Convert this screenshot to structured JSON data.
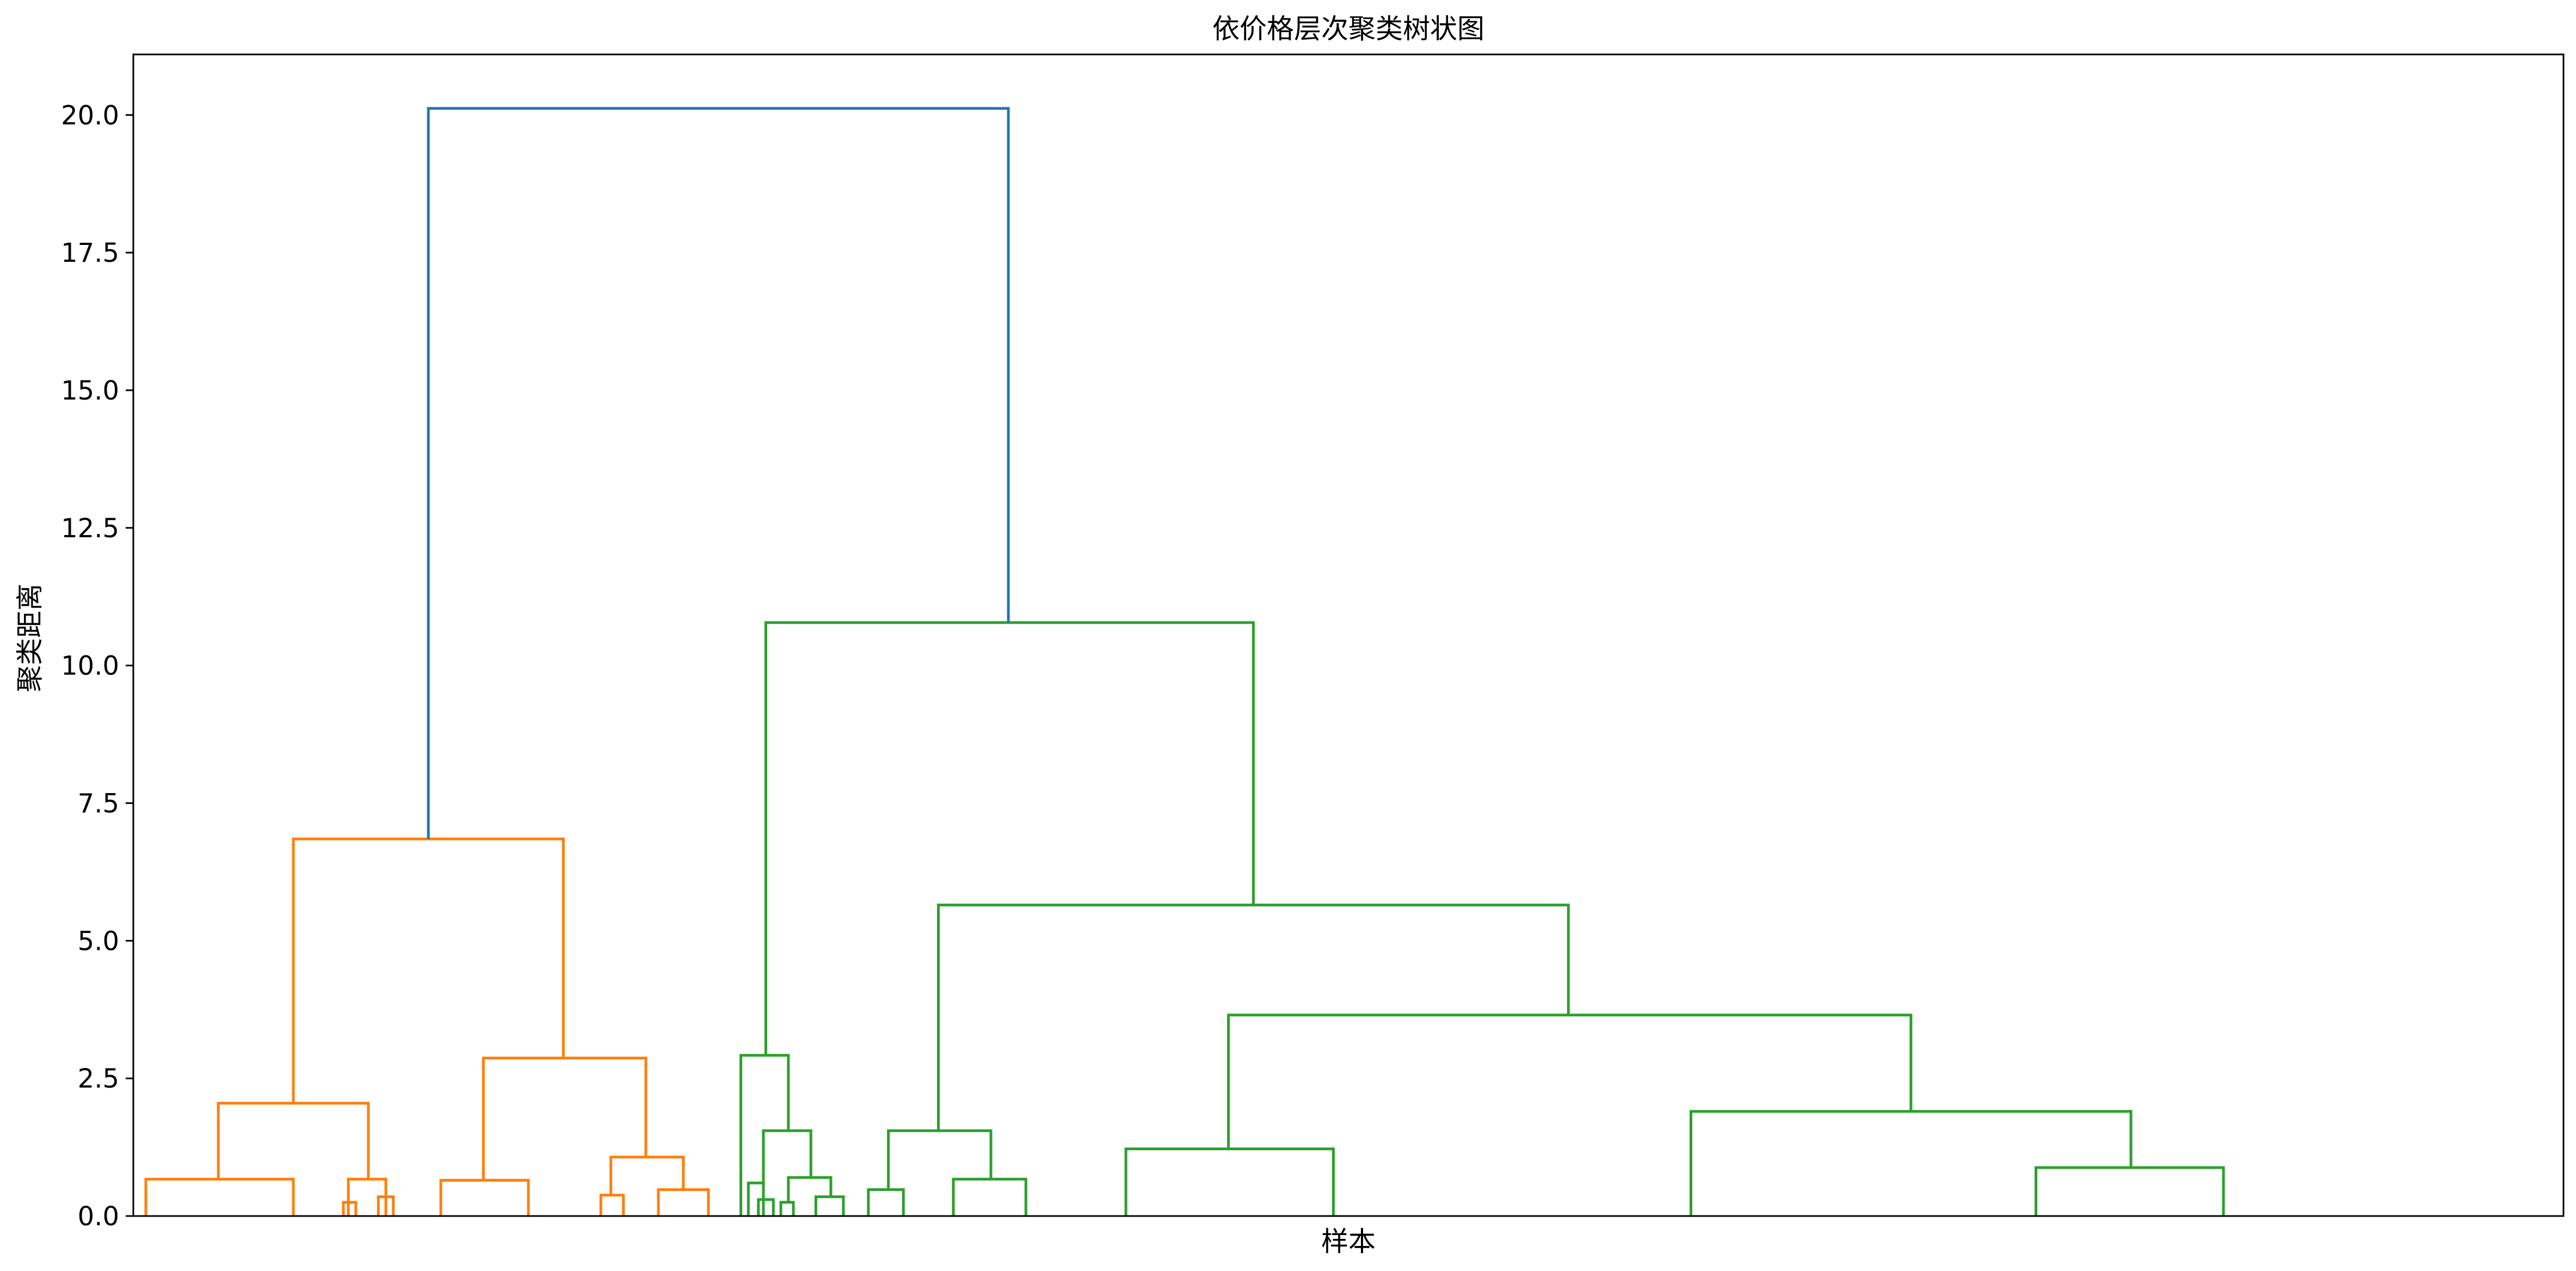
{
  "chart_data": {
    "type": "dendrogram",
    "title": "依价格层次聚类树状图",
    "xlabel": "样本",
    "ylabel": "聚类距离",
    "ylim": [
      0,
      21.1
    ],
    "xlim": [
      0,
      48.6
    ],
    "yticks": [
      "0.0",
      "2.5",
      "5.0",
      "7.5",
      "10.0",
      "12.5",
      "15.0",
      "17.5",
      "20.0"
    ],
    "ytick_values": [
      0,
      2.5,
      5.0,
      7.5,
      10.0,
      12.5,
      15.0,
      17.5,
      20.0
    ],
    "grid": false,
    "colors": {
      "orange_cluster": "#ff7f0e",
      "green_cluster": "#2ca02c",
      "root_link": "#1f77b4"
    },
    "links": [
      {
        "color": "#ff7f0e",
        "x": [
          0.25,
          0.25,
          3.2,
          3.2
        ],
        "y": [
          0,
          0.67,
          0.67,
          0
        ]
      },
      {
        "color": "#ff7f0e",
        "x": [
          4.2,
          4.2,
          4.45,
          4.45
        ],
        "y": [
          0,
          0.25,
          0.25,
          0
        ]
      },
      {
        "color": "#ff7f0e",
        "x": [
          4.9,
          4.9,
          5.2,
          5.2
        ],
        "y": [
          0,
          0.35,
          0.35,
          0
        ]
      },
      {
        "color": "#ff7f0e",
        "x": [
          4.3,
          4.3,
          5.05,
          5.05
        ],
        "y": [
          0,
          0.67,
          0.67,
          0
        ]
      },
      {
        "color": "#ff7f0e",
        "x": [
          1.7,
          1.7,
          4.7,
          4.7
        ],
        "y": [
          0.67,
          2.05,
          2.05,
          0.67
        ]
      },
      {
        "color": "#ff7f0e",
        "x": [
          6.15,
          6.15,
          7.9,
          7.9
        ],
        "y": [
          0,
          0.65,
          0.65,
          0
        ]
      },
      {
        "color": "#ff7f0e",
        "x": [
          9.35,
          9.35,
          9.8,
          9.8
        ],
        "y": [
          0,
          0.38,
          0.38,
          0
        ]
      },
      {
        "color": "#ff7f0e",
        "x": [
          10.5,
          10.5,
          11.5,
          11.5
        ],
        "y": [
          0,
          0.48,
          0.48,
          0
        ]
      },
      {
        "color": "#ff7f0e",
        "x": [
          9.55,
          9.55,
          11.0,
          11.0
        ],
        "y": [
          0.38,
          1.07,
          1.07,
          0.48
        ]
      },
      {
        "color": "#ff7f0e",
        "x": [
          7.0,
          7.0,
          10.25,
          10.25
        ],
        "y": [
          0.65,
          2.87,
          2.87,
          1.07
        ]
      },
      {
        "color": "#ff7f0e",
        "x": [
          3.2,
          3.2,
          8.6,
          8.6
        ],
        "y": [
          2.05,
          6.85,
          6.85,
          2.87
        ]
      },
      {
        "color": "#2ca02c",
        "x": [
          12.3,
          12.3,
          12.6,
          12.6
        ],
        "y": [
          0,
          0.6,
          0.6,
          0
        ]
      },
      {
        "color": "#2ca02c",
        "x": [
          12.5,
          12.5,
          12.8,
          12.8
        ],
        "y": [
          0,
          0.3,
          0.3,
          0
        ]
      },
      {
        "color": "#2ca02c",
        "x": [
          12.95,
          12.95,
          13.2,
          13.2
        ],
        "y": [
          0,
          0.25,
          0.25,
          0
        ]
      },
      {
        "color": "#2ca02c",
        "x": [
          13.65,
          13.65,
          14.2,
          14.2
        ],
        "y": [
          0,
          0.35,
          0.35,
          0
        ]
      },
      {
        "color": "#2ca02c",
        "x": [
          13.1,
          13.1,
          13.95,
          13.95
        ],
        "y": [
          0.25,
          0.7,
          0.7,
          0.35
        ]
      },
      {
        "color": "#2ca02c",
        "x": [
          12.6,
          12.6,
          13.55,
          13.55
        ],
        "y": [
          0.6,
          1.55,
          1.55,
          0.7
        ]
      },
      {
        "color": "#2ca02c",
        "x": [
          12.15,
          12.15,
          13.1,
          13.1
        ],
        "y": [
          0,
          2.92,
          2.92,
          1.55
        ]
      },
      {
        "color": "#2ca02c",
        "x": [
          14.7,
          14.7,
          15.4,
          15.4
        ],
        "y": [
          0,
          0.48,
          0.48,
          0
        ]
      },
      {
        "color": "#2ca02c",
        "x": [
          16.4,
          16.4,
          17.85,
          17.85
        ],
        "y": [
          0,
          0.67,
          0.67,
          0
        ]
      },
      {
        "color": "#2ca02c",
        "x": [
          15.1,
          15.1,
          17.15,
          17.15
        ],
        "y": [
          0.48,
          1.55,
          1.55,
          0.67
        ]
      },
      {
        "color": "#2ca02c",
        "x": [
          19.85,
          19.85,
          24.0,
          24.0
        ],
        "y": [
          0,
          1.22,
          1.22,
          0
        ]
      },
      {
        "color": "#2ca02c",
        "x": [
          38.05,
          38.05,
          41.8,
          41.8
        ],
        "y": [
          0,
          0.88,
          0.88,
          0
        ]
      },
      {
        "color": "#2ca02c",
        "x": [
          31.15,
          31.15,
          39.95,
          39.95
        ],
        "y": [
          0,
          1.9,
          1.9,
          0.88
        ]
      },
      {
        "color": "#2ca02c",
        "x": [
          21.9,
          21.9,
          35.55,
          35.55
        ],
        "y": [
          1.22,
          3.65,
          3.65,
          1.9
        ]
      },
      {
        "color": "#2ca02c",
        "x": [
          16.1,
          16.1,
          28.7,
          28.7
        ],
        "y": [
          1.55,
          5.65,
          5.65,
          3.65
        ]
      },
      {
        "color": "#2ca02c",
        "x": [
          12.65,
          12.65,
          22.4,
          22.4
        ],
        "y": [
          2.92,
          10.78,
          10.78,
          5.65
        ]
      },
      {
        "color": "#1f77b4",
        "x": [
          5.9,
          5.9,
          17.5,
          17.5
        ],
        "y": [
          6.85,
          20.12,
          20.12,
          10.78
        ]
      }
    ]
  }
}
